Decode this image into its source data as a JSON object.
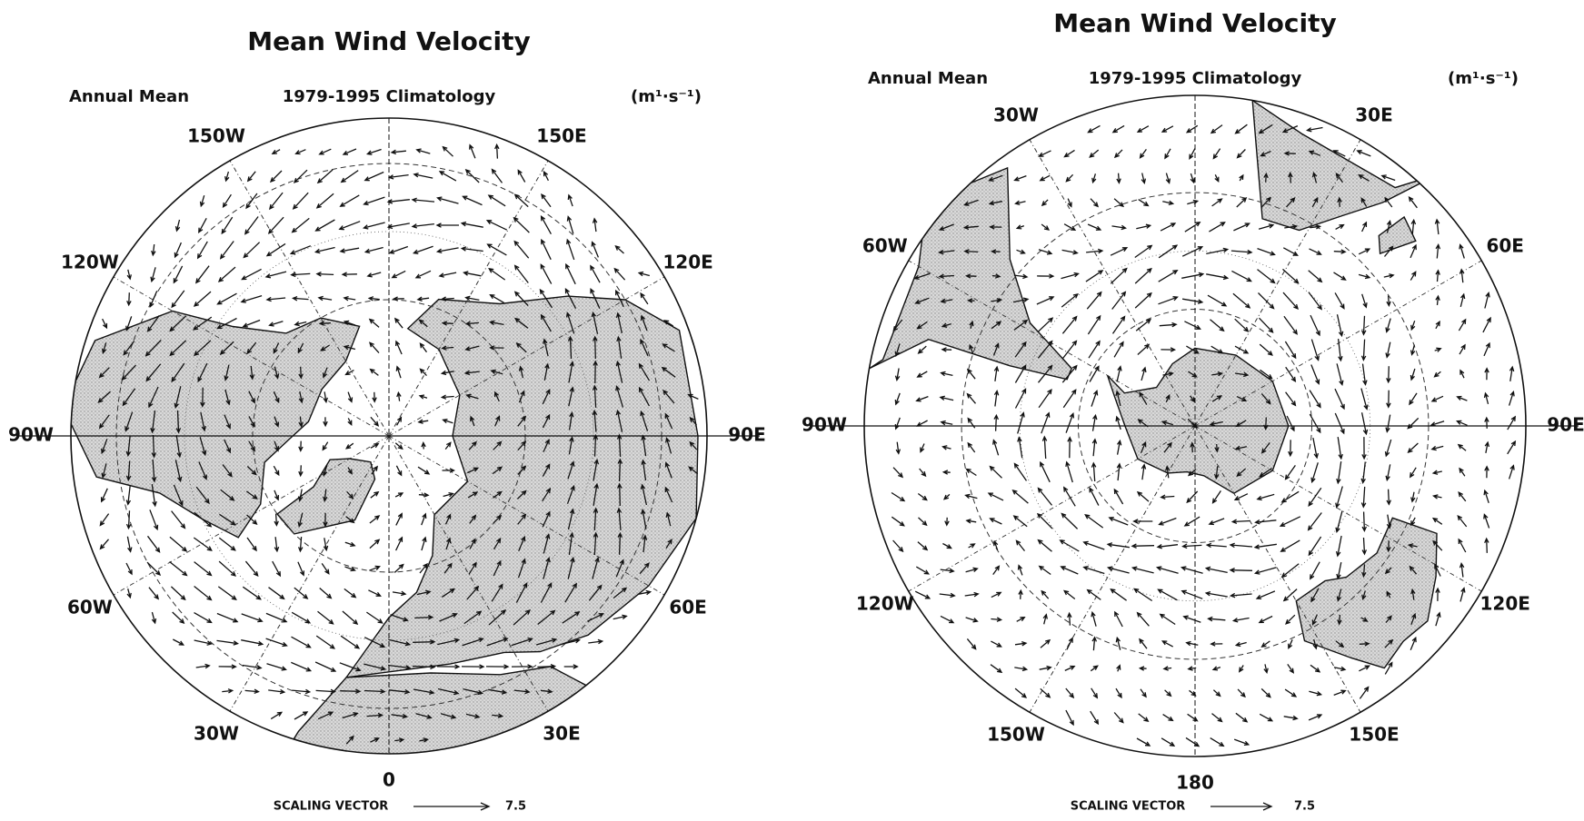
{
  "panels": [
    {
      "title": "Mean Wind Velocity",
      "period_label": "Annual Mean",
      "climatology": "1979-1995 Climatology",
      "units": "(m¹·s⁻¹)",
      "longitude_labels": [
        "150W",
        "150E",
        "120W",
        "120E",
        "90W",
        "90E",
        "60W",
        "60E",
        "30W",
        "30E",
        "0"
      ],
      "scaling_vector": {
        "label": "SCALING VECTOR",
        "value": 7.5
      }
    },
    {
      "title": "Mean Wind Velocity",
      "period_label": "Annual Mean",
      "climatology": "1979-1995 Climatology",
      "units": "(m¹·s⁻¹)",
      "longitude_labels": [
        "30W",
        "30E",
        "60W",
        "60E",
        "90W",
        "90E",
        "120W",
        "120E",
        "150W",
        "150E",
        "180"
      ],
      "scaling_vector": {
        "label": "SCALING VECTOR",
        "value": 7.5
      }
    }
  ]
}
